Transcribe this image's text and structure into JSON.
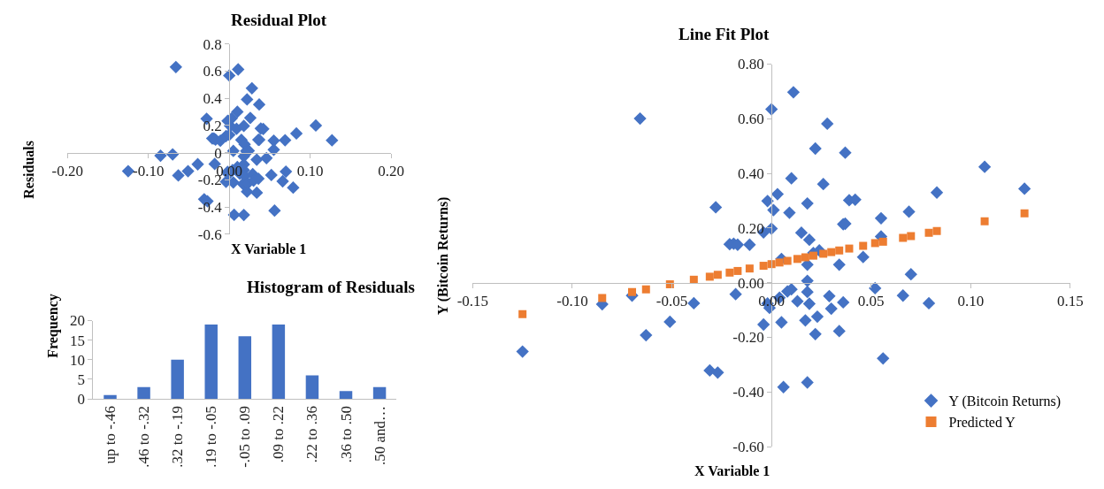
{
  "chart_data": [
    {
      "type": "scatter",
      "title": "Residual Plot",
      "xlabel": "X Variable 1",
      "ylabel": "Residuals",
      "marker": "diamond",
      "x": [
        -0.125,
        -0.085,
        -0.07,
        -0.066,
        -0.063,
        -0.051,
        -0.039,
        -0.031,
        -0.028,
        -0.027,
        -0.021,
        -0.019,
        -0.018,
        -0.017,
        -0.011,
        -0.004,
        -0.004,
        -0.002,
        -0.002,
        -0.001,
        0.0,
        0.0,
        0.001,
        0.003,
        0.004,
        0.005,
        0.005,
        0.006,
        0.009,
        0.01,
        0.01,
        0.011,
        0.013,
        0.015,
        0.017,
        0.018,
        0.018,
        0.018,
        0.018,
        0.018,
        0.019,
        0.019,
        0.021,
        0.022,
        0.022,
        0.023,
        0.024,
        0.026,
        0.028,
        0.029,
        0.03,
        0.034,
        0.034,
        0.036,
        0.036,
        0.037,
        0.037,
        0.039,
        0.042,
        0.046,
        0.052,
        0.055,
        0.055,
        0.056,
        0.066,
        0.069,
        0.07,
        0.079,
        0.083,
        0.107,
        0.127
      ],
      "series": [
        {
          "color": "#4472c4",
          "values": [
            -0.137,
            -0.023,
            -0.013,
            0.629,
            -0.168,
            -0.137,
            -0.086,
            -0.343,
            0.249,
            -0.358,
            0.104,
            0.103,
            -0.084,
            0.096,
            0.087,
            0.122,
            -0.215,
            0.233,
            -0.142,
            -0.159,
            0.567,
            0.13,
            0.197,
            0.252,
            -0.129,
            -0.22,
            0.012,
            -0.458,
            0.175,
            0.3,
            -0.107,
            0.612,
            -0.155,
            0.093,
            -0.231,
            -0.459,
            -0.028,
            -0.087,
            0.196,
            -0.129,
            -0.173,
            0.061,
            0.011,
            -0.287,
            0.391,
            -0.226,
            0.014,
            0.255,
            0.473,
            -0.159,
            -0.207,
            -0.052,
            -0.295,
            0.094,
            -0.192,
            0.094,
            0.354,
            0.177,
            0.174,
            -0.041,
            -0.165,
            0.021,
            0.088,
            -0.427,
            -0.211,
            0.091,
            -0.14,
            -0.258,
            0.141,
            0.199,
            0.09
          ]
        }
      ],
      "xlim": [
        -0.2,
        0.2
      ],
      "ylim": [
        -0.6,
        0.8
      ],
      "xticks": [
        {
          "value": -0.2,
          "label": "-0.20"
        },
        {
          "value": -0.1,
          "label": "-0.10"
        },
        {
          "value": 0,
          "label": "0.00"
        },
        {
          "value": 0.1,
          "label": "0.10"
        },
        {
          "value": 0.2,
          "label": "0.20"
        }
      ],
      "yticks": [
        -0.6,
        -0.4,
        -0.2,
        0,
        0.2,
        0.4,
        0.6,
        0.8
      ]
    },
    {
      "type": "scatter",
      "title": "Line Fit Plot",
      "xlabel": "X Variable 1",
      "ylabel": "Y (Bitcoin Returns)",
      "legend": "bottom right",
      "x": [
        -0.125,
        -0.085,
        -0.07,
        -0.066,
        -0.063,
        -0.051,
        -0.039,
        -0.031,
        -0.028,
        -0.027,
        -0.021,
        -0.019,
        -0.018,
        -0.017,
        -0.011,
        -0.004,
        -0.004,
        -0.002,
        -0.002,
        -0.001,
        0.0,
        0.0,
        0.001,
        0.003,
        0.004,
        0.005,
        0.005,
        0.006,
        0.008,
        0.009,
        0.01,
        0.01,
        0.011,
        0.013,
        0.015,
        0.017,
        0.018,
        0.018,
        0.018,
        0.018,
        0.018,
        0.019,
        0.019,
        0.021,
        0.022,
        0.022,
        0.023,
        0.024,
        0.026,
        0.028,
        0.029,
        0.03,
        0.034,
        0.034,
        0.036,
        0.036,
        0.037,
        0.037,
        0.039,
        0.042,
        0.046,
        0.052,
        0.055,
        0.055,
        0.056,
        0.066,
        0.069,
        0.07,
        0.079,
        0.083,
        0.107,
        0.127
      ],
      "series": [
        {
          "name": "Y (Bitcoin Returns)",
          "color": "#4472c4",
          "marker": "diamond",
          "values": [
            -0.252,
            -0.079,
            -0.047,
            0.601,
            -0.192,
            -0.143,
            -0.075,
            -0.321,
            0.276,
            -0.329,
            0.141,
            0.143,
            -0.042,
            0.139,
            0.139,
            0.184,
            -0.153,
            0.299,
            -0.076,
            -0.092,
            0.635,
            0.198,
            0.266,
            0.324,
            -0.055,
            -0.145,
            0.087,
            -0.382,
            -0.032,
            0.256,
            0.382,
            -0.024,
            0.697,
            -0.068,
            0.183,
            -0.138,
            -0.365,
            0.066,
            0.007,
            0.29,
            -0.034,
            -0.077,
            0.157,
            0.109,
            -0.188,
            0.491,
            -0.124,
            0.118,
            0.361,
            0.582,
            -0.049,
            -0.095,
            0.066,
            -0.177,
            0.214,
            -0.072,
            0.216,
            0.476,
            0.302,
            0.304,
            0.094,
            -0.02,
            0.169,
            0.236,
            -0.277,
            -0.047,
            0.26,
            0.031,
            -0.075,
            0.33,
            0.424,
            0.344
          ]
        },
        {
          "name": "Predicted Y",
          "color": "#ed7d31",
          "marker": "square",
          "x": [
            -0.125,
            -0.085,
            -0.07,
            -0.063,
            -0.051,
            -0.039,
            -0.031,
            -0.027,
            -0.021,
            -0.017,
            -0.011,
            -0.004,
            0.0,
            0.004,
            0.008,
            0.013,
            0.017,
            0.021,
            0.026,
            0.03,
            0.034,
            0.039,
            0.046,
            0.052,
            0.056,
            0.066,
            0.07,
            0.079,
            0.083,
            0.107,
            0.127
          ],
          "values": [
            -0.115,
            -0.056,
            -0.034,
            -0.024,
            -0.006,
            0.011,
            0.022,
            0.029,
            0.037,
            0.043,
            0.052,
            0.062,
            0.068,
            0.074,
            0.08,
            0.087,
            0.093,
            0.099,
            0.106,
            0.112,
            0.118,
            0.125,
            0.135,
            0.145,
            0.15,
            0.164,
            0.171,
            0.183,
            0.189,
            0.225,
            0.254
          ]
        }
      ],
      "xlim": [
        -0.15,
        0.15
      ],
      "ylim": [
        -0.6,
        0.8
      ],
      "xticks": [
        {
          "value": -0.15,
          "label": "-0.15"
        },
        {
          "value": -0.1,
          "label": "-0.10"
        },
        {
          "value": -0.05,
          "label": "-0.05"
        },
        {
          "value": 0,
          "label": "0.00"
        },
        {
          "value": 0.05,
          "label": "0.05"
        },
        {
          "value": 0.1,
          "label": "0.10"
        },
        {
          "value": 0.15,
          "label": "0.15"
        }
      ],
      "yticks": [
        {
          "value": -0.6,
          "label": "-0.60"
        },
        {
          "value": -0.4,
          "label": "-0.40"
        },
        {
          "value": -0.2,
          "label": "-0.20"
        },
        {
          "value": 0,
          "label": "0.00"
        },
        {
          "value": 0.2,
          "label": "0.20"
        },
        {
          "value": 0.4,
          "label": "0.40"
        },
        {
          "value": 0.6,
          "label": "0.60"
        },
        {
          "value": 0.8,
          "label": "0.80"
        }
      ]
    },
    {
      "type": "bar",
      "title": "Histogram of Residuals",
      "ylabel": "Frequency",
      "color": "#4472c4",
      "categories": [
        "up to -.46",
        ".46 to -.32",
        ".32 to -.19",
        ".19 to -.05",
        "-.05 to .09",
        ".09 to .22",
        ".22 to .36",
        ".36 to .50",
        ".50 and…"
      ],
      "values": [
        1,
        3,
        10,
        19,
        16,
        19,
        6,
        2,
        3
      ],
      "ylim": [
        0,
        20
      ],
      "yticks": [
        0,
        5,
        10,
        15,
        20
      ]
    }
  ]
}
